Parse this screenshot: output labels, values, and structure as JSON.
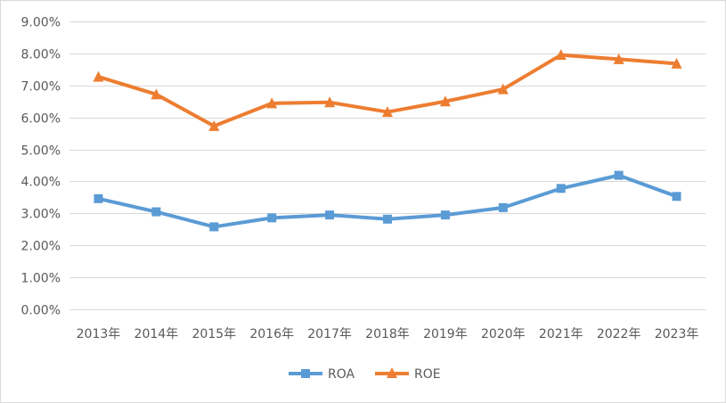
{
  "chart_data": {
    "type": "line",
    "title": "",
    "xlabel": "",
    "ylabel": "",
    "categories": [
      "2013年",
      "2014年",
      "2015年",
      "2016年",
      "2017年",
      "2018年",
      "2019年",
      "2020年",
      "2021年",
      "2022年",
      "2023年"
    ],
    "ylim": [
      0,
      0.09
    ],
    "y_ticks": [
      0,
      0.01,
      0.02,
      0.03,
      0.04,
      0.05,
      0.06,
      0.07,
      0.08,
      0.09
    ],
    "y_tick_labels": [
      "0.00%",
      "1.00%",
      "2.00%",
      "3.00%",
      "4.00%",
      "5.00%",
      "6.00%",
      "7.00%",
      "8.00%",
      "9.00%"
    ],
    "grid": true,
    "legend_position": "bottom",
    "series": [
      {
        "name": "ROA",
        "color": "#5b9bd5",
        "marker": "square",
        "values": [
          0.0346,
          0.0305,
          0.0258,
          0.0286,
          0.0295,
          0.0282,
          0.0295,
          0.0318,
          0.0378,
          0.0419,
          0.0353
        ]
      },
      {
        "name": "ROE",
        "color": "#ed7d31",
        "marker": "triangle",
        "values": [
          0.0727,
          0.0672,
          0.0573,
          0.0644,
          0.0647,
          0.0617,
          0.065,
          0.0688,
          0.0795,
          0.0782,
          0.0768
        ]
      }
    ]
  }
}
